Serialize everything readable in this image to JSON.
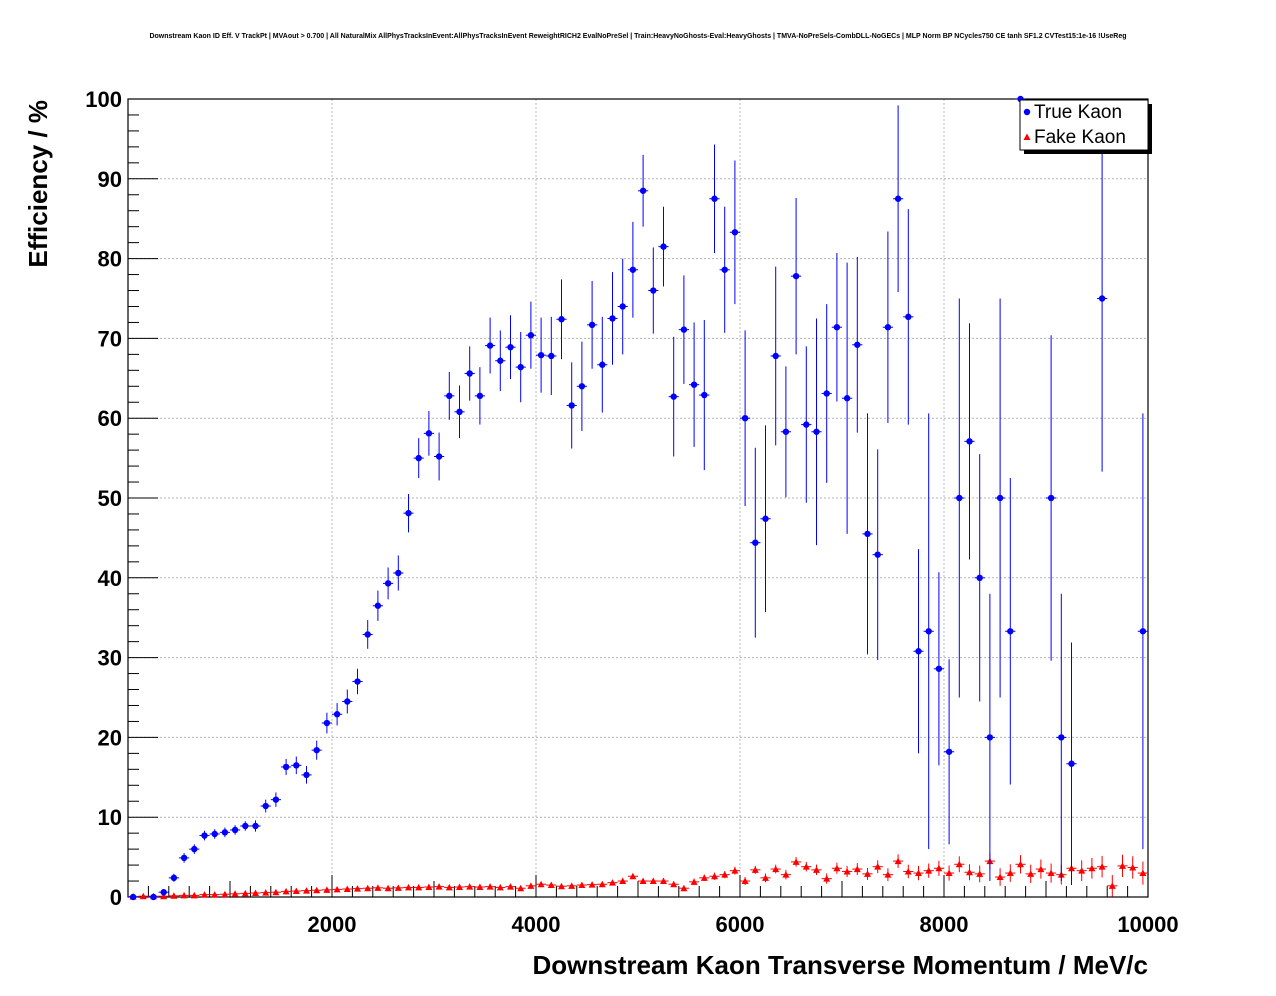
{
  "title": "Downstream Kaon ID Eff. V TrackPt | MVAout > 0.700 | All NaturalMix AllPhysTracksInEvent:AllPhysTracksInEvent ReweightRICH2 EvalNoPreSel | Train:HeavyNoGhosts-Eval:HeavyGhosts | TMVA-NoPreSels-CombDLL-NoGECs | MLP Norm BP NCycles750 CE tanh SF1.2 CVTest15:1e-16 !UseReg",
  "colors": {
    "true_kaon": "#0000ff",
    "fake_kaon": "#ff0000",
    "axis": "#000000",
    "grid": "#b4b4b4"
  },
  "chart_data": {
    "type": "scatter",
    "title": "Downstream Kaon ID Eff. V TrackPt | MVAout > 0.700 | All NaturalMix AllPhysTracksInEvent:AllPhysTracksInEvent ReweightRICH2 EvalNoPreSel | Train:HeavyNoGhosts-Eval:HeavyGhosts | TMVA-NoPreSels-CombDLL-NoGECs | MLP Norm BP NCycles750 CE tanh SF1.2 CVTest15:1e-16 !UseReg",
    "xlabel": "Downstream Kaon Transverse Momentum / MeV/c",
    "ylabel": "Efficiency / %",
    "xlim": [
      0,
      10000
    ],
    "ylim": [
      0,
      100
    ],
    "grid": true,
    "legend_position": "top-right",
    "x_ticks": [
      2000,
      4000,
      6000,
      8000,
      10000
    ],
    "y_ticks": [
      0,
      10,
      20,
      30,
      40,
      50,
      60,
      70,
      80,
      90,
      100
    ],
    "x_tick_labels": [
      "2000",
      "4000",
      "6000",
      "8000",
      "10000"
    ],
    "y_tick_labels": [
      "0",
      "10",
      "20",
      "30",
      "40",
      "50",
      "60",
      "70",
      "80",
      "90",
      "100"
    ],
    "series": [
      {
        "name": "True Kaon",
        "marker": "circle",
        "color": "#0000ff",
        "points": [
          [
            50,
            0,
            0
          ],
          [
            250,
            0,
            0
          ],
          [
            350,
            0.6,
            0.3
          ],
          [
            450,
            2.4,
            0.5
          ],
          [
            550,
            4.9,
            0.6
          ],
          [
            650,
            6.0,
            0.6
          ],
          [
            750,
            7.7,
            0.6
          ],
          [
            850,
            7.9,
            0.6
          ],
          [
            950,
            8.1,
            0.6
          ],
          [
            1050,
            8.4,
            0.6
          ],
          [
            1150,
            8.9,
            0.6
          ],
          [
            1250,
            8.9,
            0.7
          ],
          [
            1350,
            11.4,
            0.8
          ],
          [
            1450,
            12.2,
            0.9
          ],
          [
            1550,
            16.3,
            1.0
          ],
          [
            1650,
            16.5,
            1.1
          ],
          [
            1750,
            15.3,
            1.1
          ],
          [
            1850,
            18.4,
            1.2
          ],
          [
            1950,
            21.8,
            1.3
          ],
          [
            2050,
            22.9,
            1.4
          ],
          [
            2150,
            24.5,
            1.5
          ],
          [
            2250,
            27.0,
            1.6
          ],
          [
            2350,
            32.9,
            1.8
          ],
          [
            2450,
            36.5,
            1.9
          ],
          [
            2550,
            39.3,
            2.0
          ],
          [
            2650,
            40.6,
            2.2
          ],
          [
            2750,
            48.1,
            2.4
          ],
          [
            2850,
            55.0,
            2.5
          ],
          [
            2950,
            58.1,
            2.8
          ],
          [
            3050,
            55.2,
            3.0
          ],
          [
            3150,
            62.8,
            3.0
          ],
          [
            3250,
            60.8,
            3.3
          ],
          [
            3350,
            65.6,
            3.4
          ],
          [
            3450,
            62.8,
            3.6
          ],
          [
            3550,
            69.1,
            3.5
          ],
          [
            3650,
            67.2,
            3.8
          ],
          [
            3750,
            68.9,
            4.0
          ],
          [
            3850,
            66.4,
            4.4
          ],
          [
            3950,
            70.4,
            4.2
          ],
          [
            4050,
            67.9,
            4.7
          ],
          [
            4150,
            67.8,
            4.9
          ],
          [
            4250,
            72.4,
            5.0
          ],
          [
            4350,
            61.6,
            5.4
          ],
          [
            4450,
            64.0,
            5.6
          ],
          [
            4550,
            71.7,
            5.5
          ],
          [
            4650,
            66.7,
            6.0
          ],
          [
            4750,
            72.5,
            5.8
          ],
          [
            4850,
            74.0,
            6.0
          ],
          [
            4950,
            78.6,
            6.0
          ],
          [
            5050,
            88.5,
            4.5
          ],
          [
            5150,
            76.0,
            5.4
          ],
          [
            5250,
            81.5,
            5.0
          ],
          [
            5350,
            62.7,
            7.5
          ],
          [
            5450,
            71.1,
            6.8
          ],
          [
            5550,
            64.2,
            7.8
          ],
          [
            5650,
            62.9,
            9.4
          ],
          [
            5750,
            87.5,
            6.8
          ],
          [
            5850,
            78.6,
            7.9
          ],
          [
            5950,
            83.3,
            9.0
          ],
          [
            6050,
            60.0,
            11.0
          ],
          [
            6150,
            44.4,
            11.9
          ],
          [
            6250,
            47.4,
            11.7
          ],
          [
            6350,
            67.8,
            11.2
          ],
          [
            6450,
            58.3,
            8.2
          ],
          [
            6550,
            77.8,
            9.8
          ],
          [
            6650,
            59.2,
            9.8
          ],
          [
            6750,
            58.3,
            14.2
          ],
          [
            6850,
            63.1,
            11.2
          ],
          [
            6950,
            71.4,
            9.3
          ],
          [
            7050,
            62.5,
            17.0
          ],
          [
            7150,
            69.2,
            11.0
          ],
          [
            7250,
            45.5,
            15.1
          ],
          [
            7350,
            42.9,
            13.2
          ],
          [
            7450,
            71.4,
            12.0
          ],
          [
            7550,
            87.5,
            11.7
          ],
          [
            7650,
            72.7,
            13.5
          ],
          [
            7750,
            30.8,
            12.8
          ],
          [
            7850,
            33.3,
            27.3
          ],
          [
            7950,
            28.6,
            12.1
          ],
          [
            8050,
            18.2,
            11.6
          ],
          [
            8150,
            50.0,
            25.0
          ],
          [
            8250,
            57.1,
            14.8
          ],
          [
            8350,
            40.0,
            15.5
          ],
          [
            8450,
            20.0,
            18.0
          ],
          [
            8550,
            50.0,
            25.0
          ],
          [
            8650,
            33.3,
            19.2
          ],
          [
            8750,
            100,
            0
          ],
          [
            9050,
            50.0,
            20.4
          ],
          [
            9150,
            20.0,
            18.0
          ],
          [
            9250,
            16.7,
            15.2
          ],
          [
            9550,
            75.0,
            21.7
          ],
          [
            9950,
            33.3,
            27.3
          ]
        ]
      },
      {
        "name": "Fake Kaon",
        "marker": "triangle",
        "color": "#ff0000",
        "points": [
          [
            50,
            0.05,
            0.05
          ],
          [
            150,
            0.1,
            0.05
          ],
          [
            250,
            0.1,
            0.05
          ],
          [
            350,
            0.1,
            0.05
          ],
          [
            450,
            0.15,
            0.05
          ],
          [
            550,
            0.2,
            0.05
          ],
          [
            650,
            0.2,
            0.05
          ],
          [
            750,
            0.3,
            0.05
          ],
          [
            850,
            0.3,
            0.05
          ],
          [
            950,
            0.35,
            0.05
          ],
          [
            1050,
            0.4,
            0.05
          ],
          [
            1150,
            0.45,
            0.05
          ],
          [
            1250,
            0.5,
            0.05
          ],
          [
            1350,
            0.55,
            0.05
          ],
          [
            1450,
            0.6,
            0.05
          ],
          [
            1550,
            0.7,
            0.05
          ],
          [
            1650,
            0.75,
            0.05
          ],
          [
            1750,
            0.8,
            0.05
          ],
          [
            1850,
            0.85,
            0.05
          ],
          [
            1950,
            0.9,
            0.05
          ],
          [
            2050,
            0.95,
            0.1
          ],
          [
            2150,
            1.0,
            0.1
          ],
          [
            2250,
            1.05,
            0.1
          ],
          [
            2350,
            1.1,
            0.1
          ],
          [
            2450,
            1.15,
            0.1
          ],
          [
            2550,
            1.1,
            0.1
          ],
          [
            2650,
            1.15,
            0.1
          ],
          [
            2750,
            1.2,
            0.1
          ],
          [
            2850,
            1.2,
            0.1
          ],
          [
            2950,
            1.25,
            0.15
          ],
          [
            3050,
            1.3,
            0.15
          ],
          [
            3150,
            1.2,
            0.15
          ],
          [
            3250,
            1.25,
            0.15
          ],
          [
            3350,
            1.3,
            0.15
          ],
          [
            3450,
            1.25,
            0.15
          ],
          [
            3550,
            1.3,
            0.15
          ],
          [
            3650,
            1.2,
            0.15
          ],
          [
            3750,
            1.3,
            0.2
          ],
          [
            3850,
            1.1,
            0.2
          ],
          [
            3950,
            1.4,
            0.2
          ],
          [
            4050,
            1.6,
            0.2
          ],
          [
            4150,
            1.5,
            0.2
          ],
          [
            4250,
            1.35,
            0.2
          ],
          [
            4350,
            1.4,
            0.2
          ],
          [
            4450,
            1.5,
            0.25
          ],
          [
            4550,
            1.55,
            0.25
          ],
          [
            4650,
            1.6,
            0.25
          ],
          [
            4750,
            1.8,
            0.25
          ],
          [
            4850,
            2.0,
            0.3
          ],
          [
            4950,
            2.6,
            0.3
          ],
          [
            5050,
            2.0,
            0.3
          ],
          [
            5150,
            2.0,
            0.3
          ],
          [
            5250,
            2.0,
            0.35
          ],
          [
            5350,
            1.6,
            0.35
          ],
          [
            5450,
            1.1,
            0.35
          ],
          [
            5550,
            1.9,
            0.4
          ],
          [
            5650,
            2.4,
            0.4
          ],
          [
            5750,
            2.6,
            0.45
          ],
          [
            5850,
            2.8,
            0.45
          ],
          [
            5950,
            3.3,
            0.5
          ],
          [
            6050,
            2.0,
            0.5
          ],
          [
            6150,
            3.4,
            0.5
          ],
          [
            6250,
            2.4,
            0.55
          ],
          [
            6350,
            3.5,
            0.55
          ],
          [
            6450,
            2.8,
            0.6
          ],
          [
            6550,
            4.4,
            0.6
          ],
          [
            6650,
            3.8,
            0.6
          ],
          [
            6750,
            3.4,
            0.65
          ],
          [
            6850,
            2.3,
            0.65
          ],
          [
            6950,
            3.6,
            0.7
          ],
          [
            7050,
            3.2,
            0.7
          ],
          [
            7150,
            3.5,
            0.75
          ],
          [
            7250,
            2.9,
            0.75
          ],
          [
            7350,
            3.8,
            0.8
          ],
          [
            7450,
            2.8,
            0.8
          ],
          [
            7550,
            4.5,
            0.85
          ],
          [
            7650,
            3.2,
            0.85
          ],
          [
            7750,
            3.0,
            0.9
          ],
          [
            7850,
            3.3,
            0.9
          ],
          [
            7950,
            3.6,
            0.95
          ],
          [
            8050,
            3.0,
            0.95
          ],
          [
            8150,
            4.1,
            1.0
          ],
          [
            8250,
            3.1,
            1.0
          ],
          [
            8350,
            2.9,
            1.05
          ],
          [
            8450,
            4.5,
            1.05
          ],
          [
            8550,
            2.5,
            1.1
          ],
          [
            8650,
            3.0,
            1.1
          ],
          [
            8750,
            4.1,
            1.15
          ],
          [
            8850,
            2.9,
            1.15
          ],
          [
            8950,
            3.5,
            1.2
          ],
          [
            9050,
            3.0,
            1.2
          ],
          [
            9150,
            2.8,
            1.25
          ],
          [
            9250,
            3.6,
            1.25
          ],
          [
            9350,
            3.3,
            1.3
          ],
          [
            9450,
            3.6,
            1.3
          ],
          [
            9550,
            3.8,
            1.35
          ],
          [
            9650,
            1.4,
            1.35
          ],
          [
            9750,
            3.9,
            1.4
          ],
          [
            9850,
            3.7,
            1.4
          ],
          [
            9950,
            3.0,
            1.45
          ]
        ]
      }
    ]
  }
}
